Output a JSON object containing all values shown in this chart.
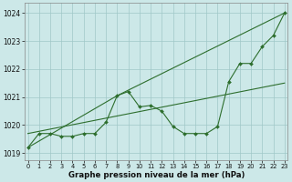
{
  "title": "Graphe pression niveau de la mer (hPa)",
  "background_color": "#cce8e8",
  "grid_color": "#a0c8c8",
  "line_color": "#2d6e2d",
  "xlim": [
    -0.3,
    23.3
  ],
  "ylim": [
    1018.75,
    1024.35
  ],
  "yticks": [
    1019,
    1020,
    1021,
    1022,
    1023,
    1024
  ],
  "xticks": [
    0,
    1,
    2,
    3,
    4,
    5,
    6,
    7,
    8,
    9,
    10,
    11,
    12,
    13,
    14,
    15,
    16,
    17,
    18,
    19,
    20,
    21,
    22,
    23
  ],
  "y_main": [
    1019.2,
    1019.7,
    1019.7,
    1019.6,
    1019.6,
    1019.7,
    1019.7,
    1020.1,
    1021.05,
    1021.2,
    1020.65,
    1020.7,
    1020.5,
    1019.95,
    1019.7,
    1019.7,
    1019.7,
    1019.95,
    1021.55,
    1022.2,
    1022.2,
    1022.8,
    1023.2,
    1024.0
  ],
  "straight_line1_x": [
    0,
    8,
    23
  ],
  "straight_line1_y": [
    1019.2,
    1021.05,
    1024.0
  ],
  "straight_line3_x": [
    0,
    23
  ],
  "straight_line3_y": [
    1019.7,
    1021.5
  ]
}
